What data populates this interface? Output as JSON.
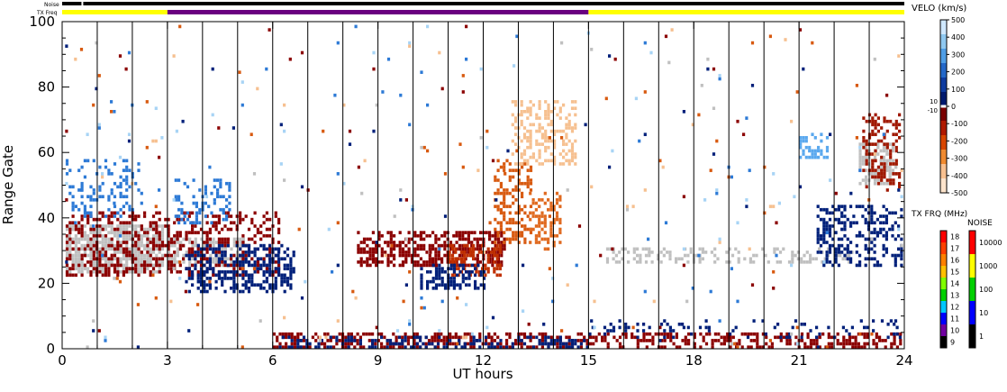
{
  "chart_data": {
    "type": "heatmap",
    "xlabel": "UT hours",
    "ylabel": "Range Gate",
    "xlim": [
      0,
      24
    ],
    "ylim": [
      0,
      100
    ],
    "xticks": [
      "0",
      "3",
      "6",
      "9",
      "12",
      "15",
      "18",
      "21",
      "24"
    ],
    "yticks": [
      "0",
      "20",
      "40",
      "60",
      "80",
      "100"
    ],
    "top_bars": {
      "noise_label": "Noise",
      "txfreq_label": "TX Freq",
      "txfreq_segments": [
        {
          "start": 0,
          "end": 3,
          "color": "#ffff00"
        },
        {
          "start": 3,
          "end": 15,
          "color": "#6a0080"
        },
        {
          "start": 15,
          "end": 24,
          "color": "#ffff00"
        }
      ]
    },
    "velocity_colorbar": {
      "title": "VELO (km/s)",
      "ticks": [
        "500",
        "400",
        "300",
        "200",
        "100",
        "0",
        "-100",
        "-200",
        "-300",
        "-400",
        "-500"
      ],
      "side_ticks": [
        "10",
        "-10"
      ],
      "colors": [
        "#cfe8ff",
        "#8fc8f0",
        "#4f9ee6",
        "#2468c8",
        "#0f3ca0",
        "#001a6e",
        "#7a0000",
        "#b01a00",
        "#d84600",
        "#f08a30",
        "#f8c090",
        "#fde4cc"
      ]
    },
    "txfreq_colorbar": {
      "title": "TX FRQ (MHz)",
      "ticks": [
        "18",
        "17",
        "16",
        "15",
        "14",
        "13",
        "12",
        "11",
        "10",
        "9"
      ],
      "colors": [
        "#ff0000",
        "#ff4000",
        "#ff8000",
        "#ffc000",
        "#80ff00",
        "#00d000",
        "#00c8ff",
        "#0000ff",
        "#7000a0",
        "#000000"
      ]
    },
    "noise_colorbar": {
      "title": "NOISE",
      "ticks": [
        "10000",
        "1000",
        "100",
        "10",
        "1"
      ],
      "colors": [
        "#ff0000",
        "#ffff00",
        "#00d000",
        "#0000ff",
        "#000000"
      ]
    },
    "scan_boundaries_ut": [
      1.0,
      2.0,
      3.0,
      4.0,
      5.0,
      6.0,
      7.0,
      8.0,
      9.0,
      10.0,
      11.0,
      12.0,
      13.0,
      14.0,
      15.0,
      16.0,
      17.0,
      18.0,
      19.0,
      20.0,
      21.0,
      22.0,
      23.0
    ],
    "echo_regions": [
      {
        "type": "ground_scatter",
        "t": [
          0.1,
          2.9
        ],
        "g": [
          23,
          38
        ],
        "color": "#c0c0c0",
        "density": 0.75
      },
      {
        "type": "ground_scatter",
        "t": [
          3.0,
          5.2
        ],
        "g": [
          25,
          34
        ],
        "color": "#c0c0c0",
        "density": 0.55
      },
      {
        "type": "ground_scatter",
        "t": [
          15.5,
          22.5
        ],
        "g": [
          26,
          31
        ],
        "color": "#c0c0c0",
        "density": 0.3
      },
      {
        "type": "ground_scatter",
        "t": [
          22.7,
          23.8
        ],
        "g": [
          50,
          63
        ],
        "color": "#c0c0c0",
        "density": 0.55
      },
      {
        "type": "negative_velocity",
        "t": [
          0.1,
          6.2
        ],
        "g": [
          22,
          42
        ],
        "color": "#8b0000",
        "density": 0.35
      },
      {
        "type": "positive_velocity",
        "t": [
          3.5,
          6.6
        ],
        "g": [
          17,
          32
        ],
        "color": "#00207a",
        "density": 0.45
      },
      {
        "type": "negative_velocity",
        "t": [
          8.4,
          12.6
        ],
        "g": [
          25,
          36
        ],
        "color": "#8b0000",
        "density": 0.55
      },
      {
        "type": "negative_velocity",
        "t": [
          11.0,
          12.5
        ],
        "g": [
          22,
          32
        ],
        "color": "#c03000",
        "density": 0.45
      },
      {
        "type": "positive_velocity",
        "t": [
          10.2,
          12.0
        ],
        "g": [
          18,
          26
        ],
        "color": "#00207a",
        "density": 0.5
      },
      {
        "type": "negative_velocity",
        "t": [
          12.3,
          13.4
        ],
        "g": [
          32,
          58
        ],
        "color": "#d85a10",
        "density": 0.35
      },
      {
        "type": "negative_velocity",
        "t": [
          12.8,
          14.6
        ],
        "g": [
          56,
          76
        ],
        "color": "#f6c090",
        "density": 0.4
      },
      {
        "type": "negative_velocity",
        "t": [
          13.3,
          14.2
        ],
        "g": [
          30,
          48
        ],
        "color": "#e06a20",
        "density": 0.35
      },
      {
        "type": "positive_velocity",
        "t": [
          0.1,
          2.3
        ],
        "g": [
          40,
          58
        ],
        "color": "#2d7ad6",
        "density": 0.2
      },
      {
        "type": "positive_velocity",
        "t": [
          3.2,
          4.8
        ],
        "g": [
          38,
          52
        ],
        "color": "#2d7ad6",
        "density": 0.3
      },
      {
        "type": "positive_velocity",
        "t": [
          21.5,
          23.9
        ],
        "g": [
          25,
          44
        ],
        "color": "#00207a",
        "density": 0.35
      },
      {
        "type": "negative_velocity",
        "t": [
          22.8,
          23.9
        ],
        "g": [
          48,
          72
        ],
        "color": "#a01800",
        "density": 0.3
      },
      {
        "type": "positive_velocity",
        "t": [
          21.0,
          21.8
        ],
        "g": [
          58,
          66
        ],
        "color": "#5aa8ee",
        "density": 0.35
      },
      {
        "type": "negative_velocity",
        "t": [
          6.0,
          23.9
        ],
        "g": [
          0,
          5
        ],
        "color": "#8b0000",
        "density": 0.45
      },
      {
        "type": "positive_velocity",
        "t": [
          6.0,
          15.0
        ],
        "g": [
          0,
          4
        ],
        "color": "#00207a",
        "density": 0.35
      },
      {
        "type": "positive_velocity",
        "t": [
          15.0,
          23.9
        ],
        "g": [
          3,
          9
        ],
        "color": "#00207a",
        "density": 0.12
      },
      {
        "type": "scattered",
        "t": [
          0.0,
          24.0
        ],
        "g": [
          0,
          100
        ],
        "color": "mixed",
        "density": 0.012
      }
    ]
  }
}
